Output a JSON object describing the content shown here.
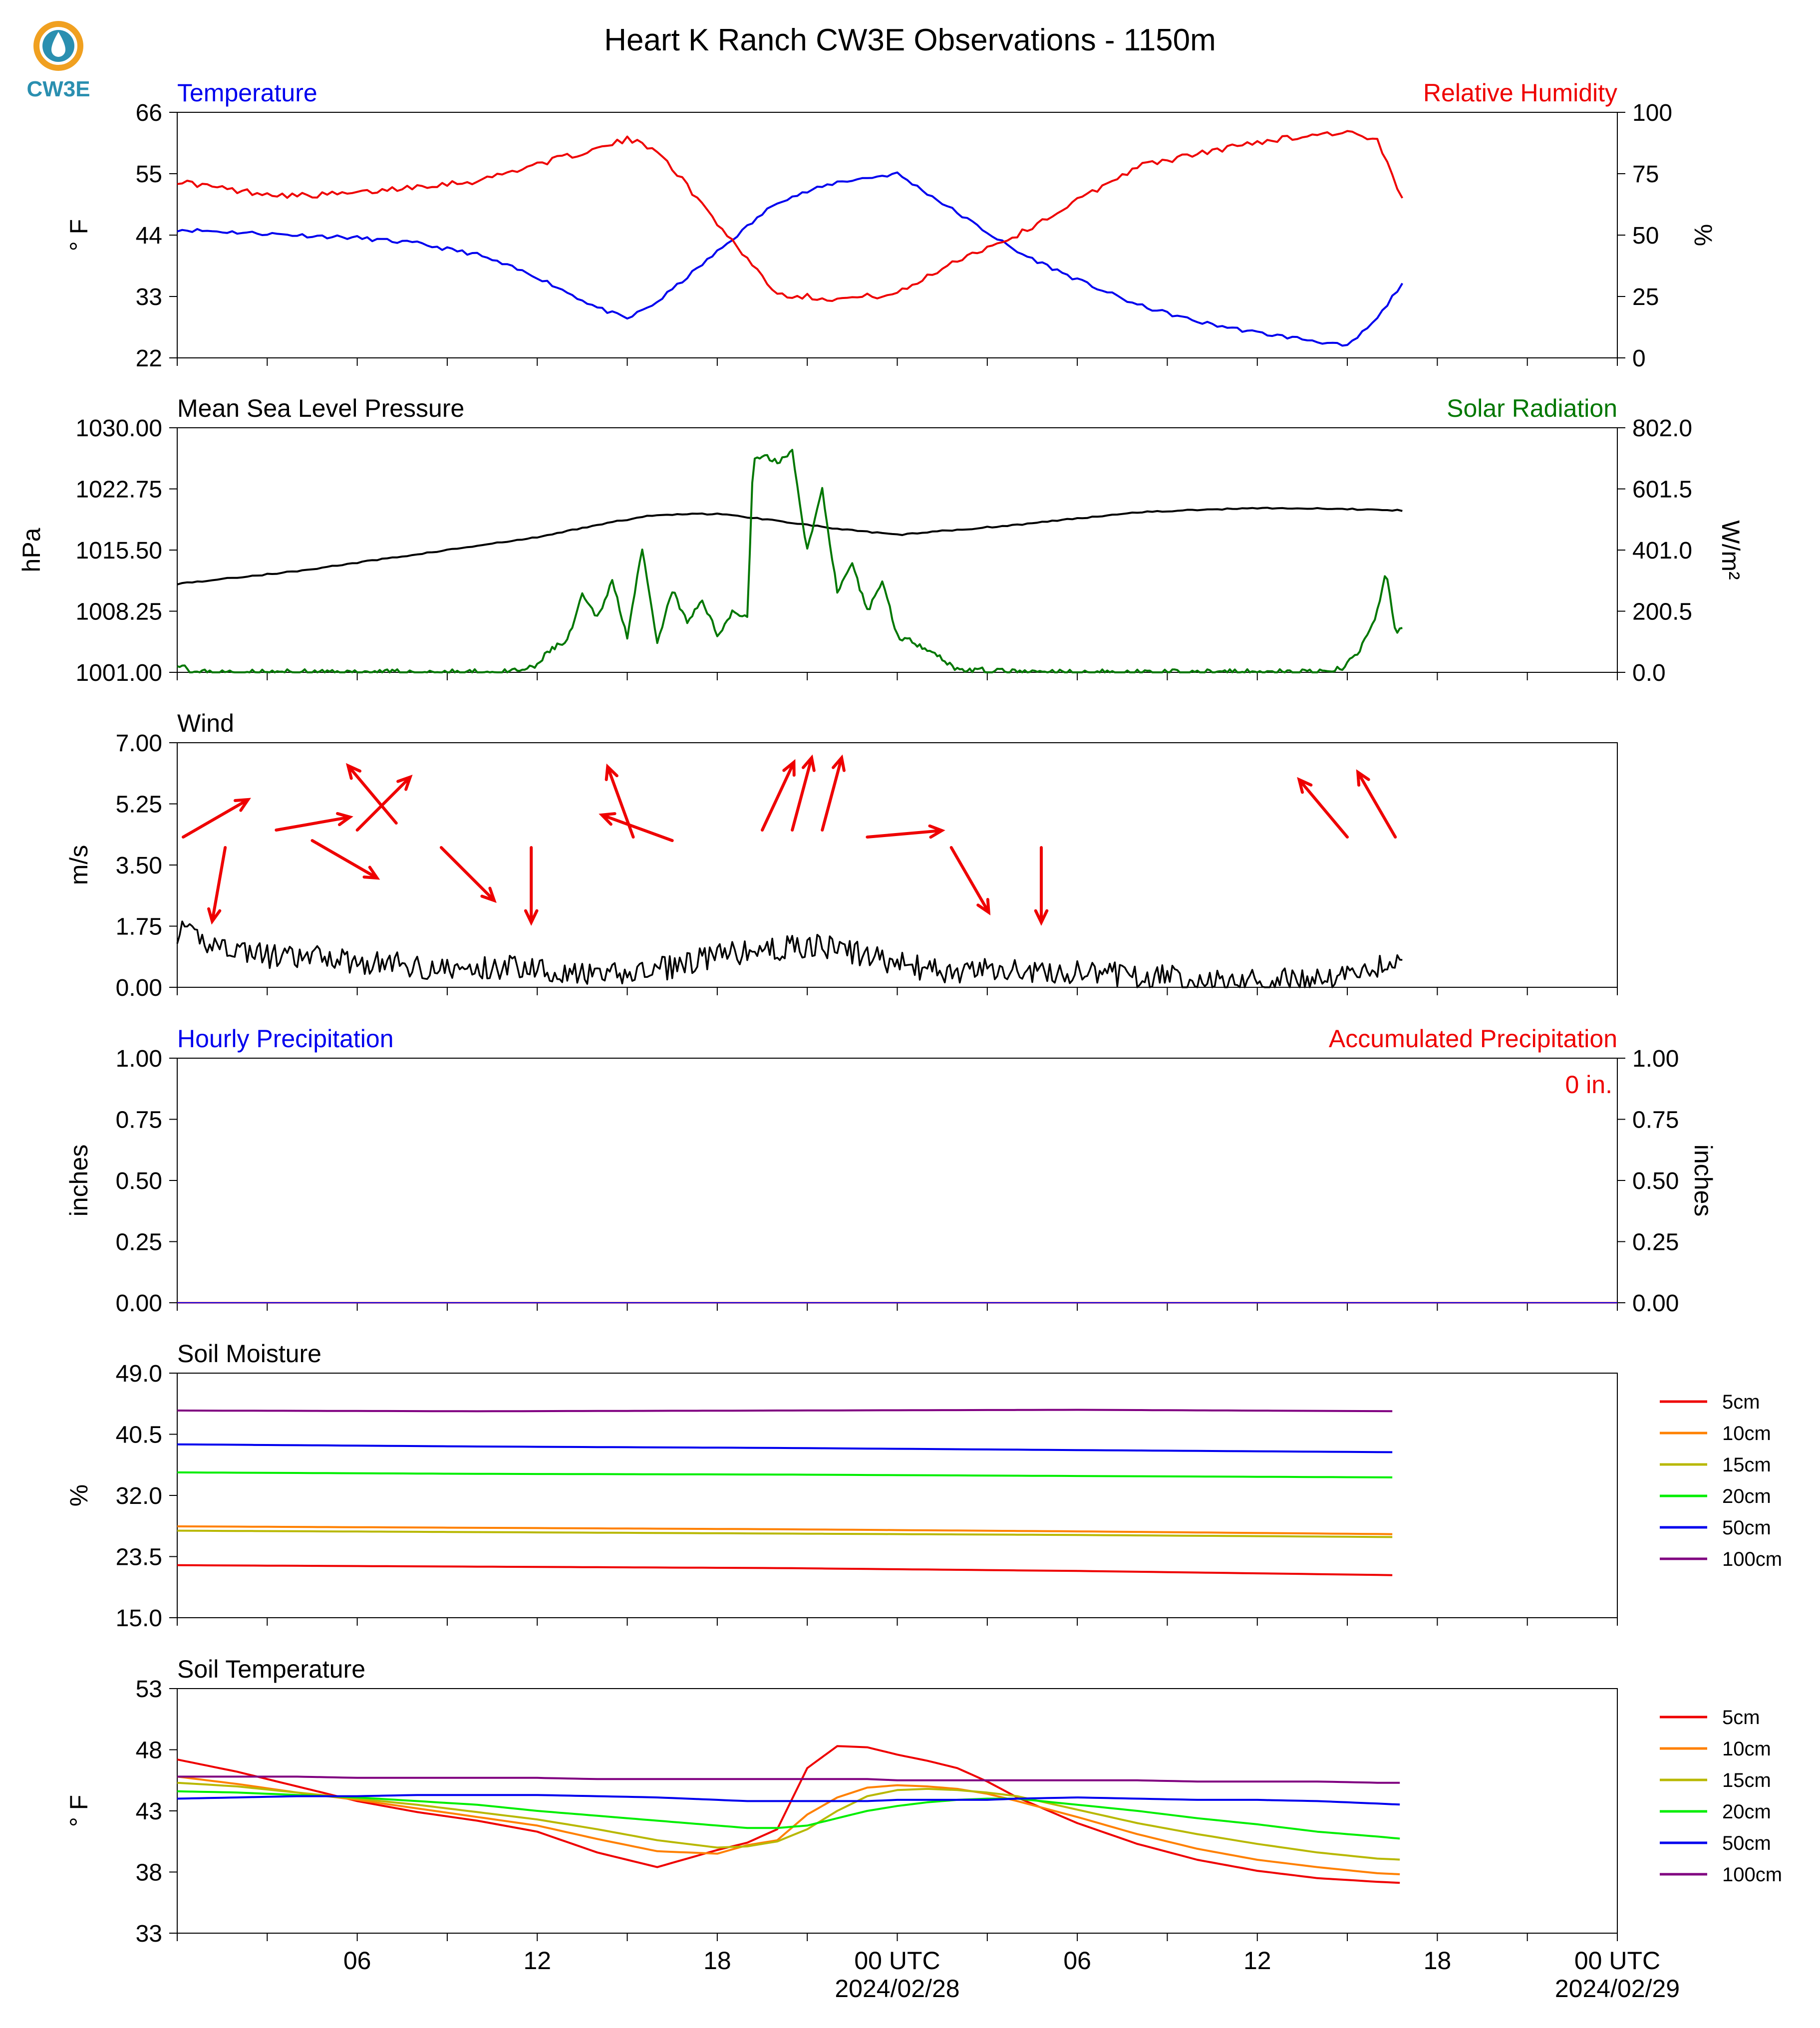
{
  "header": {
    "title": "Heart K Ranch CW3E Observations - 1150m",
    "logo_text": "CW3E"
  },
  "time_axis": {
    "tick_labels": [
      "06",
      "12",
      "18",
      "00 UTC",
      "06",
      "12",
      "18",
      "00 UTC"
    ],
    "date_labels": [
      "2024/02/28",
      "2024/02/29"
    ]
  },
  "colors": {
    "temperature": "#0000ee",
    "humidity": "#ee0000",
    "pressure": "#000000",
    "solar": "#007700",
    "wind": "#000000",
    "wind_arrow": "#ee0000",
    "soil_5cm": "#ee0000",
    "soil_10cm": "#ff8000",
    "soil_15cm": "#b8b800",
    "soil_20cm": "#00ee00",
    "soil_50cm": "#0000ee",
    "soil_100cm": "#800080",
    "logo": "#2a8fb0",
    "logo_sun": "#f0a020"
  },
  "chart_data": [
    {
      "type": "line",
      "panel": "temperature_humidity",
      "left_label": "Temperature",
      "right_label": "Relative Humidity",
      "ylabel": "° F",
      "ylabel_right": "%",
      "ylim": [
        22,
        66
      ],
      "ylim_right": [
        0,
        100
      ],
      "yticks": [
        "22",
        "33",
        "44",
        "55",
        "66"
      ],
      "yticks_right": [
        "0",
        "25",
        "50",
        "75",
        "100"
      ],
      "x_hours": [
        0,
        2,
        4,
        6,
        8,
        10,
        12,
        14,
        15,
        16,
        18,
        20,
        22,
        24,
        26,
        28,
        30,
        32,
        34,
        36,
        38,
        39,
        40,
        40.9
      ],
      "series": [
        {
          "key": "temperature",
          "values": [
            45,
            44.5,
            44,
            43.5,
            42.5,
            40.5,
            36.5,
            31,
            29,
            32,
            41,
            50,
            53.5,
            55,
            48,
            41,
            36,
            31.5,
            28.5,
            26.5,
            25,
            24,
            29,
            36
          ]
        },
        {
          "key": "humidity",
          "values": [
            72,
            68,
            66,
            67,
            70,
            72,
            79,
            85,
            89,
            85,
            55,
            26,
            24,
            26,
            40,
            50,
            64,
            78,
            83,
            88,
            91,
            92,
            88,
            63
          ]
        }
      ]
    },
    {
      "type": "line",
      "panel": "pressure_solar",
      "left_label": "Mean Sea Level Pressure",
      "right_label": "Solar Radiation",
      "ylabel": "hPa",
      "ylabel_right": "W/m²",
      "ylim": [
        1001,
        1030
      ],
      "ylim_right": [
        0,
        802
      ],
      "yticks": [
        "1001.00",
        "1008.25",
        "1015.50",
        "1022.75",
        "1030.00"
      ],
      "yticks_right": [
        "0.0",
        "200.5",
        "401.0",
        "601.5",
        "802.0"
      ],
      "x_hours": [
        0,
        4,
        8,
        12,
        14,
        16,
        18,
        20,
        22,
        24,
        28,
        32,
        36,
        40,
        40.9
      ],
      "series": [
        {
          "key": "pressure",
          "values": [
            1011.5,
            1013,
            1015,
            1017,
            1018.5,
            1019.7,
            1019.8,
            1019,
            1018,
            1017.3,
            1018.5,
            1020,
            1020.5,
            1020.3,
            1020.2
          ]
        },
        {
          "key": "solar",
          "hours": [
            0,
            0.3,
            0.5,
            11,
            11.9,
            12.5,
            13,
            13.5,
            14,
            14.5,
            15,
            15.5,
            16,
            16.5,
            17,
            17.5,
            18,
            18.5,
            19,
            19.2,
            19.5,
            20,
            20.5,
            21,
            21.5,
            22,
            22.5,
            23,
            23.5,
            24,
            25,
            26,
            28,
            33,
            33.5,
            34,
            34.5,
            35,
            35.5,
            36,
            36.5,
            37,
            37.5,
            38,
            38.5,
            38.9,
            39.3,
            39.7,
            40,
            40.3,
            40.6,
            40.9
          ],
          "values": [
            30,
            20,
            0,
            0,
            15,
            80,
            100,
            250,
            180,
            300,
            120,
            400,
            90,
            270,
            160,
            240,
            120,
            200,
            180,
            700,
            710,
            690,
            720,
            400,
            600,
            260,
            350,
            200,
            300,
            120,
            80,
            10,
            0,
            0,
            0,
            0,
            0,
            0,
            0,
            0,
            0,
            0,
            0,
            0,
            0,
            20,
            60,
            120,
            200,
            330,
            130,
            150
          ]
        }
      ]
    },
    {
      "type": "line",
      "panel": "wind",
      "left_label": "Wind",
      "ylabel": "m/s",
      "ylim": [
        0,
        7
      ],
      "yticks": [
        "0.00",
        "1.75",
        "3.50",
        "5.25",
        "7.00"
      ],
      "x_hours": [
        0,
        1,
        2,
        3,
        4,
        5,
        6,
        7,
        8,
        9,
        10,
        11,
        12,
        13,
        14,
        15,
        16,
        17,
        18,
        19,
        20,
        21,
        22,
        23,
        24,
        25,
        26,
        27,
        28,
        29,
        30,
        31,
        32,
        33,
        34,
        35,
        36,
        37,
        38,
        39,
        40,
        40.9
      ],
      "series": [
        {
          "key": "wind_speed",
          "values": [
            1.6,
            1.3,
            1.1,
            0.9,
            0.8,
            0.9,
            0.7,
            0.7,
            0.6,
            0.5,
            0.5,
            0.6,
            0.6,
            0.4,
            0.3,
            0.4,
            0.5,
            0.7,
            0.9,
            1.0,
            1.1,
            1.2,
            1.1,
            0.9,
            0.7,
            0.5,
            0.4,
            0.5,
            0.5,
            0.4,
            0.4,
            0.4,
            0.3,
            0.3,
            0.2,
            0.2,
            0.2,
            0.2,
            0.2,
            0.4,
            0.6,
            0.8
          ]
        }
      ],
      "arrows": [
        {
          "hour": 0.2,
          "speed": 4.3,
          "dir_deg": 240
        },
        {
          "hour": 1.6,
          "speed": 4.0,
          "dir_deg": 10
        },
        {
          "hour": 3.3,
          "speed": 4.5,
          "dir_deg": 260
        },
        {
          "hour": 4.5,
          "speed": 4.2,
          "dir_deg": 300
        },
        {
          "hour": 6.0,
          "speed": 4.5,
          "dir_deg": 225
        },
        {
          "hour": 7.3,
          "speed": 4.7,
          "dir_deg": 140
        },
        {
          "hour": 8.8,
          "speed": 4.0,
          "dir_deg": 315
        },
        {
          "hour": 11.8,
          "speed": 4.0,
          "dir_deg": 0
        },
        {
          "hour": 15.2,
          "speed": 4.3,
          "dir_deg": 160
        },
        {
          "hour": 16.5,
          "speed": 4.2,
          "dir_deg": 110
        },
        {
          "hour": 19.5,
          "speed": 4.5,
          "dir_deg": 205
        },
        {
          "hour": 20.5,
          "speed": 4.5,
          "dir_deg": 195
        },
        {
          "hour": 21.5,
          "speed": 4.5,
          "dir_deg": 195
        },
        {
          "hour": 23.0,
          "speed": 4.3,
          "dir_deg": 265
        },
        {
          "hour": 25.8,
          "speed": 4.0,
          "dir_deg": 330
        },
        {
          "hour": 28.8,
          "speed": 4.0,
          "dir_deg": 0
        },
        {
          "hour": 39.0,
          "speed": 4.3,
          "dir_deg": 140
        },
        {
          "hour": 40.6,
          "speed": 4.3,
          "dir_deg": 150
        }
      ]
    },
    {
      "type": "line",
      "panel": "precipitation",
      "left_label": "Hourly Precipitation",
      "right_label": "Accumulated Precipitation",
      "annotation": "0 in.",
      "ylabel": "inches",
      "ylabel_right": "inches",
      "ylim": [
        0,
        1
      ],
      "ylim_right": [
        0,
        1
      ],
      "yticks": [
        "0.00",
        "0.25",
        "0.50",
        "0.75",
        "1.00"
      ],
      "yticks_right": [
        "0.00",
        "0.25",
        "0.50",
        "0.75",
        "1.00"
      ],
      "x_hours": [
        0,
        48
      ],
      "series": [
        {
          "key": "hourly_precip",
          "values": [
            0,
            0
          ]
        },
        {
          "key": "accum_precip",
          "values": [
            0,
            0
          ]
        }
      ]
    },
    {
      "type": "line",
      "panel": "soil_moisture",
      "left_label": "Soil Moisture",
      "ylabel": "%",
      "ylim": [
        15,
        49
      ],
      "yticks": [
        "15.0",
        "23.5",
        "32.0",
        "40.5",
        "49.0"
      ],
      "x_hours": [
        0,
        10,
        20,
        30,
        40.9
      ],
      "legend": [
        "5cm",
        "10cm",
        "15cm",
        "20cm",
        "50cm",
        "100cm"
      ],
      "series": [
        {
          "key": "soil_5cm",
          "name": "5cm",
          "values": [
            22.3,
            22.1,
            21.9,
            21.5,
            20.9
          ]
        },
        {
          "key": "soil_10cm",
          "name": "10cm",
          "values": [
            27.7,
            27.5,
            27.3,
            27.0,
            26.6
          ]
        },
        {
          "key": "soil_15cm",
          "name": "15cm",
          "values": [
            27.1,
            26.9,
            26.7,
            26.5,
            26.2
          ]
        },
        {
          "key": "soil_20cm",
          "name": "20cm",
          "values": [
            35.2,
            35.0,
            34.9,
            34.7,
            34.5
          ]
        },
        {
          "key": "soil_50cm",
          "name": "50cm",
          "values": [
            39.1,
            38.8,
            38.6,
            38.3,
            38.0
          ]
        },
        {
          "key": "soil_100cm",
          "name": "100cm",
          "values": [
            43.8,
            43.7,
            43.8,
            43.9,
            43.7
          ]
        }
      ]
    },
    {
      "type": "line",
      "panel": "soil_temperature",
      "left_label": "Soil Temperature",
      "ylabel": "° F",
      "ylim": [
        33,
        53
      ],
      "yticks": [
        "33",
        "38",
        "43",
        "48",
        "53"
      ],
      "x_hours": [
        0,
        2,
        4,
        6,
        8,
        10,
        12,
        14,
        16,
        18,
        19,
        20,
        21,
        22,
        23,
        24,
        25,
        26,
        27,
        28,
        30,
        32,
        34,
        36,
        38,
        40,
        40.9
      ],
      "legend": [
        "5cm",
        "10cm",
        "15cm",
        "20cm",
        "50cm",
        "100cm"
      ],
      "series": [
        {
          "key": "soil_5cm",
          "name": "5cm",
          "values": [
            47.2,
            46.2,
            45,
            43.8,
            42.9,
            42.2,
            41.3,
            39.6,
            38.4,
            39.8,
            40.4,
            41.5,
            46.5,
            48.3,
            48.2,
            47.6,
            47.1,
            46.5,
            45.4,
            44.1,
            42,
            40.3,
            39,
            38.1,
            37.5,
            37.2,
            37.1
          ]
        },
        {
          "key": "soil_10cm",
          "name": "10cm",
          "values": [
            45.8,
            45.2,
            44.5,
            43.9,
            43.2,
            42.5,
            41.8,
            40.7,
            39.7,
            39.5,
            40.2,
            40.6,
            42.7,
            44.1,
            44.9,
            45.1,
            45.0,
            44.8,
            44.4,
            43.8,
            42.5,
            41.1,
            39.9,
            39.0,
            38.4,
            37.9,
            37.8
          ]
        },
        {
          "key": "soil_15cm",
          "name": "15cm",
          "values": [
            45.3,
            45.0,
            44.5,
            44.0,
            43.5,
            42.9,
            42.3,
            41.5,
            40.6,
            40.0,
            40.1,
            40.5,
            41.5,
            43.0,
            44.2,
            44.7,
            44.8,
            44.7,
            44.5,
            44.2,
            43.1,
            42.0,
            41.1,
            40.3,
            39.6,
            39.1,
            39.0
          ]
        },
        {
          "key": "soil_20cm",
          "name": "20cm",
          "values": [
            44.6,
            44.5,
            44.3,
            44.1,
            43.8,
            43.5,
            43.0,
            42.6,
            42.2,
            41.8,
            41.6,
            41.6,
            41.8,
            42.4,
            43.0,
            43.4,
            43.7,
            43.9,
            44.0,
            44.0,
            43.5,
            43.0,
            42.4,
            41.9,
            41.3,
            40.9,
            40.7
          ]
        },
        {
          "key": "soil_50cm",
          "name": "50cm",
          "values": [
            44.0,
            44.1,
            44.2,
            44.2,
            44.3,
            44.3,
            44.3,
            44.2,
            44.1,
            43.9,
            43.8,
            43.8,
            43.8,
            43.8,
            43.8,
            43.9,
            43.9,
            43.9,
            43.9,
            44.0,
            44.1,
            44.0,
            43.9,
            43.9,
            43.8,
            43.6,
            43.5
          ]
        },
        {
          "key": "soil_100cm",
          "name": "100cm",
          "values": [
            45.8,
            45.8,
            45.8,
            45.7,
            45.7,
            45.7,
            45.7,
            45.6,
            45.6,
            45.6,
            45.6,
            45.6,
            45.6,
            45.6,
            45.6,
            45.5,
            45.5,
            45.5,
            45.5,
            45.5,
            45.5,
            45.5,
            45.4,
            45.4,
            45.4,
            45.3,
            45.3
          ]
        }
      ]
    }
  ]
}
